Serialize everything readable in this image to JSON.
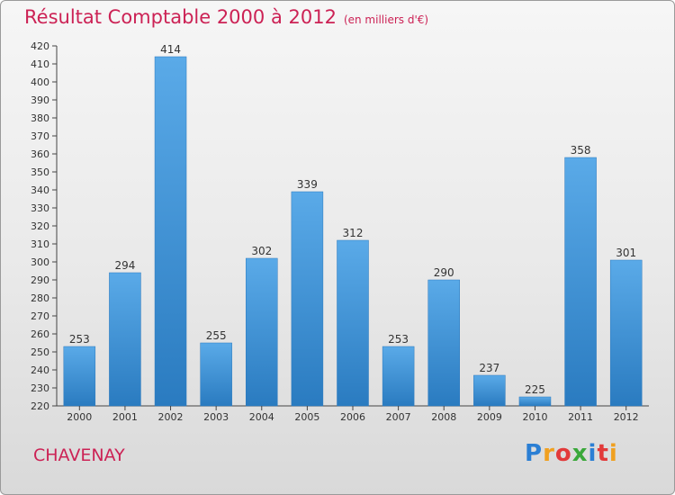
{
  "chart_data": {
    "type": "bar",
    "title": "Résultat Comptable 2000 à 2012",
    "subtitle": "(en milliers d'€)",
    "categories": [
      "2000",
      "2001",
      "2002",
      "2003",
      "2004",
      "2005",
      "2006",
      "2007",
      "2008",
      "2009",
      "2010",
      "2011",
      "2012"
    ],
    "values": [
      253,
      294,
      414,
      255,
      302,
      339,
      312,
      253,
      290,
      237,
      225,
      358,
      301
    ],
    "ylim": [
      220,
      420
    ],
    "ytick_step": 10,
    "xlabel": "",
    "ylabel": "",
    "grid": false,
    "bar_color": "#3a8fd6"
  },
  "place_name": "CHAVENAY",
  "logo": {
    "letters": [
      "P",
      "r",
      "o",
      "x",
      "i",
      "t",
      "i"
    ],
    "colors": [
      "#2b7fd4",
      "#f0a020",
      "#e23a3a",
      "#3aa83a",
      "#2b7fd4",
      "#e23a3a",
      "#f0a020"
    ],
    "aria": "Proxiti"
  }
}
